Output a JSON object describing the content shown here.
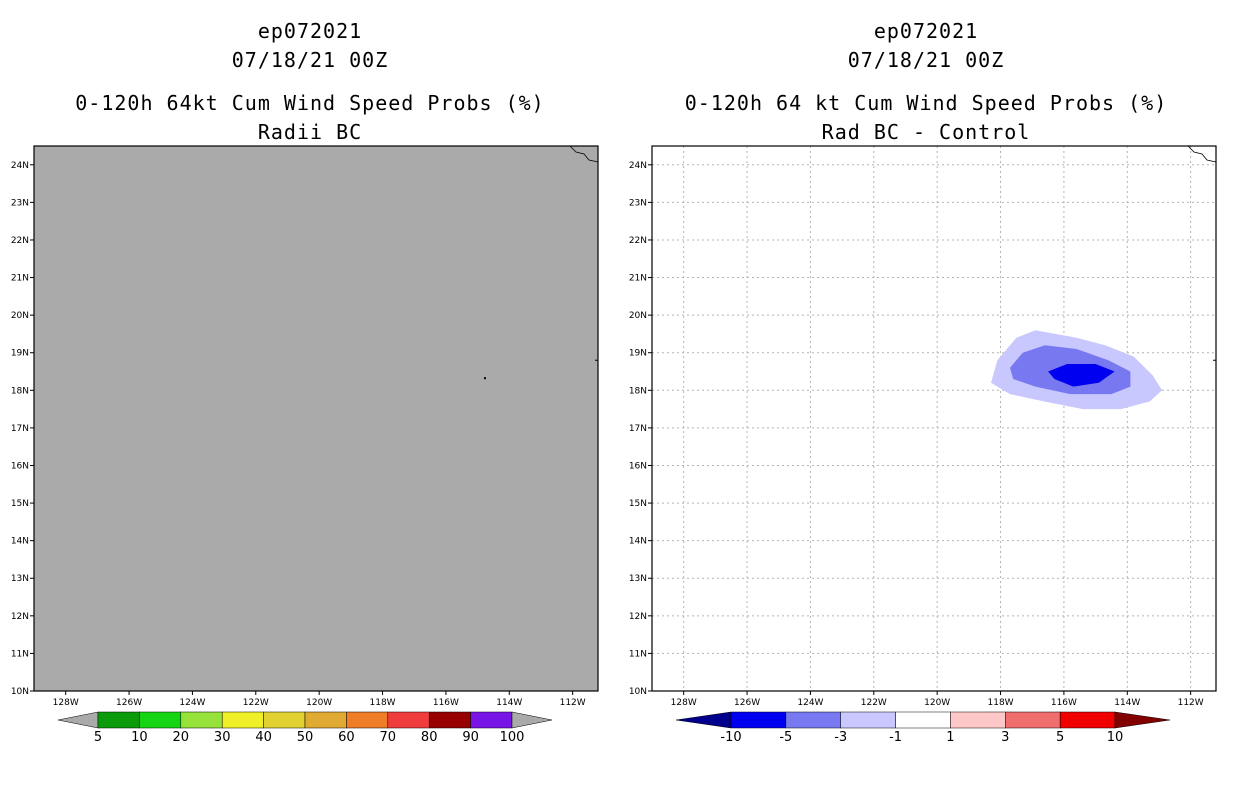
{
  "chart_data": [
    {
      "type": "heatmap",
      "id": "left",
      "title_lines": [
        "ep072021",
        "07/18/21 00Z"
      ],
      "subtitle_lines": [
        "0-120h 64kt Cum Wind Speed Probs (%)",
        "Radii BC"
      ],
      "x_ticks": [
        "128W",
        "126W",
        "124W",
        "122W",
        "120W",
        "118W",
        "116W",
        "114W",
        "112W"
      ],
      "x_tick_values": [
        -128,
        -126,
        -124,
        -122,
        -120,
        -118,
        -116,
        -114,
        -112
      ],
      "y_ticks": [
        "10N",
        "11N",
        "12N",
        "13N",
        "14N",
        "15N",
        "16N",
        "17N",
        "18N",
        "19N",
        "20N",
        "21N",
        "22N",
        "23N",
        "24N"
      ],
      "y_tick_values": [
        10,
        11,
        12,
        13,
        14,
        15,
        16,
        17,
        18,
        19,
        20,
        21,
        22,
        23,
        24
      ],
      "xlim": [
        -129.0,
        -111.2
      ],
      "ylim": [
        10.0,
        24.5
      ],
      "background": "#aaaaaa",
      "grid": false,
      "legend": {
        "labels": [
          "5",
          "10",
          "20",
          "30",
          "40",
          "50",
          "60",
          "70",
          "80",
          "90",
          "100"
        ],
        "colors": [
          "#aaaaaa",
          "#0a9a0a",
          "#14d414",
          "#96e13a",
          "#f0f028",
          "#e1d232",
          "#e1aa32",
          "#f07d28",
          "#f03c3c",
          "#960000",
          "#7814e6",
          "#aaaaaa"
        ]
      }
    },
    {
      "type": "heatmap",
      "id": "right",
      "title_lines": [
        "ep072021",
        "07/18/21 00Z"
      ],
      "subtitle_lines": [
        "0-120h 64 kt Cum Wind Speed Probs (%)",
        "Rad BC - Control"
      ],
      "x_ticks": [
        "128W",
        "126W",
        "124W",
        "122W",
        "120W",
        "118W",
        "116W",
        "114W",
        "112W"
      ],
      "x_tick_values": [
        -128,
        -126,
        -124,
        -122,
        -120,
        -118,
        -116,
        -114,
        -112
      ],
      "y_ticks": [
        "10N",
        "11N",
        "12N",
        "13N",
        "14N",
        "15N",
        "16N",
        "17N",
        "18N",
        "19N",
        "20N",
        "21N",
        "22N",
        "23N",
        "24N"
      ],
      "y_tick_values": [
        10,
        11,
        12,
        13,
        14,
        15,
        16,
        17,
        18,
        19,
        20,
        21,
        22,
        23,
        24
      ],
      "xlim": [
        -129.0,
        -111.2
      ],
      "ylim": [
        10.0,
        24.5
      ],
      "background": "#ffffff",
      "grid": true,
      "contours": [
        {
          "level": "-3 to -1",
          "color": "#c8c8ff",
          "points": [
            [
              -118.3,
              18.2
            ],
            [
              -118.1,
              18.8
            ],
            [
              -117.5,
              19.4
            ],
            [
              -116.9,
              19.6
            ],
            [
              -115.6,
              19.4
            ],
            [
              -114.7,
              19.2
            ],
            [
              -113.8,
              18.9
            ],
            [
              -113.2,
              18.4
            ],
            [
              -112.9,
              18.0
            ],
            [
              -113.3,
              17.7
            ],
            [
              -114.2,
              17.5
            ],
            [
              -115.4,
              17.5
            ],
            [
              -116.6,
              17.7
            ],
            [
              -117.7,
              17.9
            ]
          ]
        },
        {
          "level": "-5 to -3",
          "color": "#7878f0",
          "points": [
            [
              -117.7,
              18.6
            ],
            [
              -117.3,
              19.0
            ],
            [
              -116.6,
              19.2
            ],
            [
              -115.6,
              19.1
            ],
            [
              -114.6,
              18.8
            ],
            [
              -113.9,
              18.5
            ],
            [
              -113.9,
              18.1
            ],
            [
              -114.5,
              17.9
            ],
            [
              -115.8,
              17.9
            ],
            [
              -116.9,
              18.1
            ],
            [
              -117.6,
              18.3
            ]
          ]
        },
        {
          "level": "< -5",
          "color": "#0000f0",
          "points": [
            [
              -116.5,
              18.5
            ],
            [
              -115.9,
              18.7
            ],
            [
              -115.0,
              18.7
            ],
            [
              -114.4,
              18.5
            ],
            [
              -114.9,
              18.2
            ],
            [
              -115.7,
              18.1
            ],
            [
              -116.3,
              18.3
            ]
          ]
        }
      ],
      "legend": {
        "labels": [
          "-10",
          "-5",
          "-3",
          "-1",
          "1",
          "3",
          "5",
          "10"
        ],
        "colors": [
          "#00008c",
          "#0000f0",
          "#7878f0",
          "#c8c8ff",
          "#ffffff",
          "#ffc8c8",
          "#f06e6e",
          "#f00000",
          "#820000"
        ]
      }
    }
  ]
}
